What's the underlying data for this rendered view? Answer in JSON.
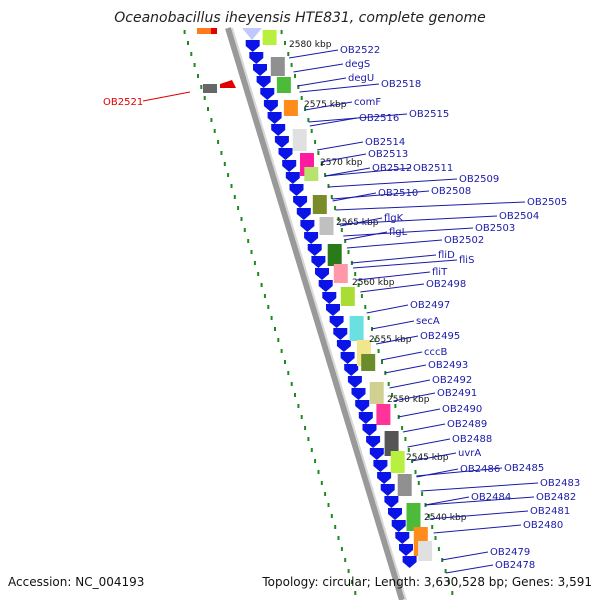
{
  "title": "Oceanobacillus iheyensis HTE831, complete genome",
  "footer": {
    "accession": "Accession: NC_004193",
    "summary": "Topology: circular; Length: 3,630,528 bp; Genes: 3,591"
  },
  "colors": {
    "backbone": "#a0a0a0",
    "arrow": "#0a14e6",
    "label_line": "#1a1aa8",
    "label_text": "#1a1aa8",
    "highlight": "#dd0000",
    "dots": "#1f8a1f"
  },
  "kbp_ticks": [
    "2580 kbp",
    "2575 kbp",
    "2570 kbp",
    "2565 kbp",
    "2560 kbp",
    "2555 kbp",
    "2550 kbp",
    "2545 kbp",
    "2540 kbp"
  ],
  "genes": [
    "OB2522",
    "degS",
    "degU",
    "OB2518",
    "comF",
    "OB2516",
    "OB2515",
    "OB2514",
    "OB2513",
    "OB2512",
    "OB2511",
    "OB2509",
    "OB2510",
    "OB2508",
    "OB2505",
    "OB2504",
    "flgK",
    "OB2503",
    "flgL",
    "OB2502",
    "fliD",
    "fliS",
    "fliT",
    "OB2498",
    "OB2497",
    "secA",
    "OB2495",
    "cccB",
    "OB2493",
    "OB2492",
    "OB2491",
    "OB2490",
    "OB2489",
    "OB2488",
    "uvrA",
    "OB2486",
    "OB2485",
    "OB2483",
    "OB2484",
    "OB2482",
    "OB2481",
    "OB2480",
    "OB2479",
    "OB2478"
  ],
  "highlight_gene": "OB2521",
  "block_colors": [
    "#b8f040",
    "#909090",
    "#4dbb3a",
    "#ff8c1a",
    "#e0e0e0",
    "#ff1aa0",
    "#b5e36c",
    "#7a8c2a",
    "#c0c0c0",
    "#2a7a1a",
    "#ff99aa",
    "#aadd33",
    "#6be0e0",
    "#f0e68c",
    "#6b8c2a",
    "#d0d090",
    "#ff3399",
    "#555555"
  ]
}
